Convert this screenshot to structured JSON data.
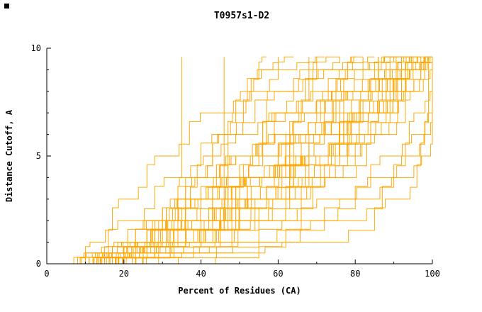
{
  "page": {
    "background": "#FFFFFF"
  },
  "artifacts": {
    "corner_square_color": "#000000"
  },
  "chart_data": {
    "type": "line",
    "title": "T0957s1-D2",
    "xlabel": "Percent of Residues (CA)",
    "ylabel": "Distance Cutoff, A",
    "xlim": [
      0,
      100
    ],
    "ylim": [
      0,
      10
    ],
    "grid": false,
    "legend": "none",
    "x_major_ticks": [
      0,
      20,
      40,
      60,
      80,
      100
    ],
    "x_minor_ticks": [
      10,
      30,
      50,
      70,
      90
    ],
    "y_major_ticks": [
      0,
      5,
      10
    ],
    "y_minor_ticks": [
      1,
      2,
      3,
      4,
      6,
      7,
      8,
      9
    ],
    "line_color": "#FFA500",
    "axis_color": "#000000",
    "cutoff_levels": [
      0,
      0.5,
      1,
      2,
      3,
      4,
      5,
      6,
      7,
      8,
      9,
      9.6
    ],
    "curves_percent_at_levels": [
      [
        8,
        30,
        40,
        52,
        62,
        70,
        76,
        82,
        88,
        93,
        97,
        100
      ],
      [
        10,
        28,
        38,
        50,
        60,
        68,
        75,
        81,
        87,
        92,
        97,
        100
      ],
      [
        12,
        33,
        45,
        57,
        66,
        73,
        80,
        86,
        91,
        95,
        98,
        100
      ],
      [
        9,
        22,
        32,
        45,
        55,
        64,
        72,
        79,
        85,
        91,
        96,
        100
      ],
      [
        14,
        35,
        48,
        60,
        69,
        77,
        83,
        88,
        93,
        96,
        99,
        100
      ],
      [
        11,
        25,
        34,
        47,
        58,
        67,
        74,
        81,
        87,
        92,
        96,
        99
      ],
      [
        13,
        27,
        36,
        48,
        57,
        65,
        73,
        80,
        86,
        91,
        95,
        98
      ],
      [
        10,
        20,
        29,
        42,
        52,
        61,
        70,
        77,
        84,
        90,
        95,
        98
      ],
      [
        15,
        30,
        40,
        53,
        63,
        71,
        78,
        84,
        89,
        93,
        97,
        99
      ],
      [
        12,
        24,
        33,
        45,
        55,
        63,
        71,
        78,
        84,
        90,
        94,
        97
      ],
      [
        9,
        18,
        26,
        38,
        48,
        57,
        66,
        74,
        81,
        87,
        93,
        97
      ],
      [
        16,
        32,
        42,
        54,
        63,
        71,
        78,
        84,
        89,
        93,
        96,
        98
      ],
      [
        11,
        21,
        30,
        42,
        52,
        60,
        68,
        75,
        82,
        88,
        93,
        96
      ],
      [
        13,
        25,
        34,
        46,
        55,
        63,
        70,
        77,
        83,
        89,
        93,
        96
      ],
      [
        10,
        19,
        27,
        38,
        47,
        56,
        64,
        72,
        79,
        85,
        91,
        95
      ],
      [
        17,
        33,
        43,
        55,
        64,
        72,
        79,
        84,
        89,
        93,
        96,
        98
      ],
      [
        12,
        22,
        31,
        43,
        52,
        60,
        68,
        75,
        81,
        87,
        92,
        95
      ],
      [
        14,
        26,
        35,
        46,
        55,
        63,
        70,
        76,
        82,
        87,
        92,
        95
      ],
      [
        9,
        16,
        23,
        34,
        43,
        52,
        60,
        68,
        75,
        82,
        88,
        93
      ],
      [
        15,
        28,
        37,
        48,
        57,
        64,
        71,
        77,
        83,
        88,
        92,
        94
      ],
      [
        11,
        20,
        28,
        39,
        48,
        56,
        63,
        70,
        77,
        83,
        89,
        93
      ],
      [
        13,
        23,
        32,
        43,
        51,
        59,
        66,
        72,
        78,
        84,
        89,
        92
      ],
      [
        7,
        15,
        21,
        31,
        40,
        48,
        56,
        64,
        71,
        78,
        85,
        91
      ],
      [
        16,
        29,
        38,
        49,
        57,
        64,
        70,
        76,
        81,
        86,
        90,
        92
      ],
      [
        12,
        21,
        29,
        39,
        47,
        55,
        62,
        68,
        74,
        80,
        86,
        90
      ],
      [
        10,
        17,
        24,
        34,
        42,
        50,
        57,
        64,
        71,
        77,
        84,
        89
      ],
      [
        14,
        24,
        32,
        42,
        50,
        57,
        63,
        69,
        75,
        81,
        86,
        90
      ],
      [
        9,
        15,
        21,
        30,
        38,
        45,
        52,
        59,
        66,
        73,
        80,
        86
      ],
      [
        17,
        28,
        36,
        46,
        53,
        60,
        66,
        71,
        76,
        81,
        86,
        88
      ],
      [
        12,
        20,
        27,
        36,
        44,
        51,
        57,
        63,
        69,
        75,
        81,
        86
      ],
      [
        15,
        25,
        33,
        42,
        49,
        56,
        62,
        67,
        72,
        77,
        82,
        85
      ],
      [
        10,
        16,
        22,
        31,
        38,
        45,
        51,
        57,
        63,
        69,
        76,
        82
      ],
      [
        13,
        21,
        28,
        36,
        43,
        49,
        55,
        61,
        66,
        72,
        78,
        82
      ],
      [
        11,
        17,
        23,
        31,
        38,
        44,
        50,
        56,
        62,
        68,
        74,
        79
      ],
      [
        18,
        27,
        34,
        43,
        49,
        55,
        60,
        65,
        70,
        74,
        78,
        80
      ],
      [
        14,
        21,
        27,
        35,
        41,
        47,
        52,
        57,
        62,
        67,
        72,
        76
      ],
      [
        12,
        18,
        23,
        30,
        36,
        42,
        47,
        52,
        57,
        62,
        68,
        72
      ],
      [
        16,
        23,
        29,
        36,
        42,
        47,
        52,
        56,
        60,
        64,
        68,
        70
      ],
      [
        13,
        18,
        23,
        29,
        34,
        39,
        43,
        47,
        51,
        55,
        60,
        64
      ],
      [
        15,
        20,
        24,
        30,
        35,
        39,
        43,
        47,
        50,
        53,
        57,
        60
      ],
      [
        18,
        23,
        27,
        32,
        36,
        40,
        43,
        46,
        49,
        52,
        55,
        57
      ],
      [
        12,
        32,
        42,
        45,
        46,
        46,
        46,
        46,
        46,
        46,
        46,
        46
      ],
      [
        10,
        18,
        26,
        31,
        34,
        35,
        35,
        35,
        35,
        35,
        35,
        35
      ],
      [
        18,
        38,
        52,
        66,
        76,
        84,
        90,
        94,
        97,
        99,
        100,
        100
      ],
      [
        20,
        40,
        55,
        70,
        80,
        88,
        93,
        97,
        99,
        100,
        100,
        100
      ],
      [
        22,
        44,
        58,
        72,
        82,
        90,
        95,
        98,
        100,
        100,
        100,
        100
      ],
      [
        25,
        50,
        62,
        78,
        87,
        93,
        97,
        99,
        100,
        100,
        100,
        100
      ],
      [
        30,
        55,
        70,
        85,
        92,
        96,
        99,
        100,
        100,
        100,
        100,
        100
      ],
      [
        8,
        12,
        16,
        22,
        28,
        34,
        40,
        47,
        54,
        62,
        70,
        76
      ],
      [
        7,
        10,
        13,
        17,
        21,
        26,
        31,
        37,
        44,
        52,
        61,
        68
      ]
    ]
  }
}
